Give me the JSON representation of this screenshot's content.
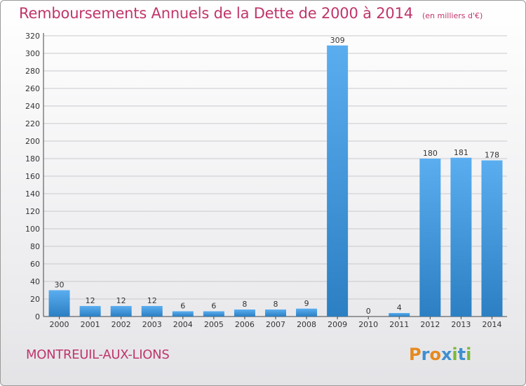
{
  "header": {
    "title": "Remboursements Annuels de la Dette de 2000 à 2014",
    "unit": "(en milliers d'€)"
  },
  "footer": {
    "place": "MONTREUIL-AUX-LIONS",
    "logo_text": "Proxiti"
  },
  "colors": {
    "accent": "#c0356a",
    "bar_light": "#5aaef0",
    "bar_dark": "#2b7fc2"
  },
  "chart_data": {
    "type": "bar",
    "categories": [
      "2000",
      "2001",
      "2002",
      "2003",
      "2004",
      "2005",
      "2006",
      "2007",
      "2008",
      "2009",
      "2010",
      "2011",
      "2012",
      "2013",
      "2014"
    ],
    "values": [
      30,
      12,
      12,
      12,
      6,
      6,
      8,
      8,
      9,
      309,
      0,
      4,
      180,
      181,
      178
    ],
    "data_labels": [
      "30",
      "12",
      "12",
      "12",
      "6",
      "6",
      "8",
      "8",
      "9",
      "309",
      "0",
      "4",
      "180",
      "181",
      "178"
    ],
    "yticks": [
      0,
      20,
      40,
      60,
      80,
      100,
      120,
      140,
      160,
      180,
      200,
      220,
      240,
      260,
      280,
      300,
      320
    ],
    "ylim": [
      0,
      320
    ],
    "grid": true,
    "legend": "none"
  }
}
